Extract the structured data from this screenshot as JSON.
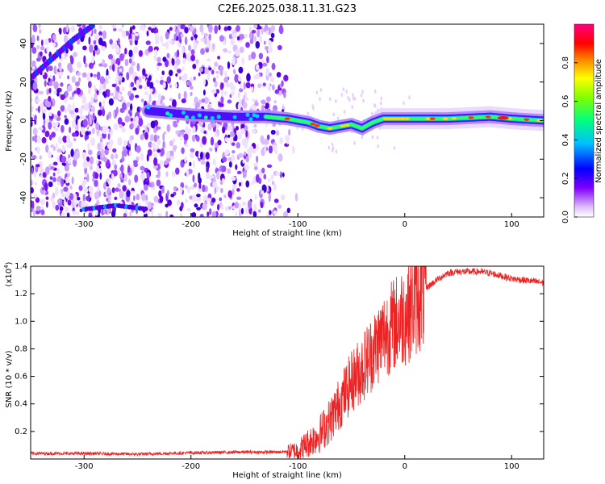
{
  "title": "C2E6.2025.038.11.31.G23",
  "colors": {
    "snr_line": "#ee2222",
    "colormap": [
      "#f7f7f7",
      "#d9b3ff",
      "#8000ff",
      "#0000ff",
      "#00c8ff",
      "#00ff80",
      "#80ff00",
      "#ffff00",
      "#ff8000",
      "#ff0000",
      "#ff00a0"
    ]
  },
  "chart_data": [
    {
      "type": "heatmap",
      "xlabel": "Height of straight line (km)",
      "ylabel": "Frequency (Hz)",
      "xlim": [
        -350,
        130
      ],
      "ylim": [
        -50,
        50
      ],
      "xticks": [
        -300,
        -200,
        -100,
        0,
        100
      ],
      "xtick_labels": [
        "-300",
        "-200",
        "-100",
        "0",
        "100"
      ],
      "yticks": [
        -40,
        -20,
        0,
        20,
        40
      ],
      "ytick_labels": [
        "-40",
        "-20",
        "0",
        "20",
        "40"
      ],
      "colorbar": {
        "label": "Normalized spectral amplitude",
        "range": [
          0,
          1
        ],
        "ticks": [
          0.0,
          0.2,
          0.4,
          0.6,
          0.8
        ],
        "tick_labels": [
          "0.0",
          "0.2",
          "0.4",
          "0.6",
          "0.8"
        ]
      },
      "ridge": {
        "x": [
          -240,
          -200,
          -160,
          -130,
          -110,
          -90,
          -80,
          -70,
          -60,
          -50,
          -40,
          -30,
          -20,
          0,
          40,
          80,
          100,
          130
        ],
        "frequency": [
          5,
          3,
          2,
          2,
          1,
          -1,
          -3,
          -4,
          -3,
          -2,
          -4,
          -1,
          1,
          1,
          1,
          2,
          1,
          0
        ]
      },
      "noise_region_x": [
        -350,
        -130
      ],
      "early_signal_track": {
        "x": [
          -350,
          -330,
          -310,
          -290
        ],
        "frequency": [
          22,
          32,
          42,
          50
        ]
      },
      "low_track": {
        "x": [
          -300,
          -270,
          -240
        ],
        "frequency": [
          -46,
          -44,
          -46
        ]
      }
    },
    {
      "type": "line",
      "xlabel": "Height of straight line (km)",
      "ylabel": "SNR (10 * v/v)",
      "y_multiplier": "(x10",
      "y_multiplier_exp": "4",
      "y_multiplier_close": ")",
      "xlim": [
        -350,
        130
      ],
      "ylim": [
        0,
        14000
      ],
      "xticks": [
        -300,
        -200,
        -100,
        0,
        100
      ],
      "xtick_labels": [
        "-300",
        "-200",
        "-100",
        "0",
        "100"
      ],
      "yticks": [
        2000,
        4000,
        6000,
        8000,
        10000,
        12000,
        14000
      ],
      "ytick_labels": [
        "0.2",
        "0.4",
        "0.6",
        "0.8",
        "1.0",
        "1.2",
        "1.4"
      ],
      "series": [
        {
          "x": [
            -350,
            -300,
            -250,
            -200,
            -150,
            -120,
            -100,
            -90,
            -80,
            -70,
            -60,
            -50,
            -40,
            -30,
            -20,
            -10,
            0,
            10,
            20,
            30,
            40,
            50,
            60,
            70,
            80,
            90,
            100,
            110,
            120,
            130
          ],
          "y": [
            400,
            400,
            350,
            450,
            500,
            500,
            600,
            1200,
            1800,
            2800,
            4200,
            5600,
            6600,
            7800,
            9000,
            9800,
            10500,
            11500,
            12400,
            13000,
            13500,
            13600,
            13600,
            13600,
            13500,
            13300,
            13100,
            13000,
            12900,
            12800
          ]
        }
      ]
    }
  ]
}
